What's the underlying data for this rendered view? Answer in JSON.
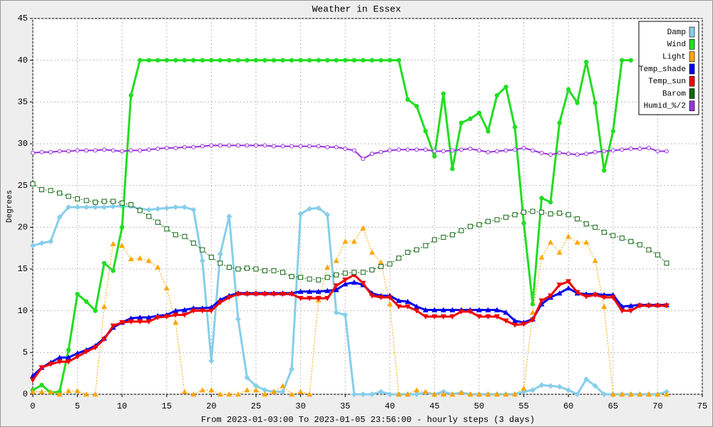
{
  "chart_data": {
    "type": "line",
    "title": "Weather in Essex",
    "y_label": "Degrees",
    "x_label": "From 2023-01-03:00 To 2023-01-05 23:56:00 - hourly steps (3 days)",
    "x": [
      0,
      1,
      2,
      3,
      4,
      5,
      6,
      7,
      8,
      9,
      10,
      11,
      12,
      13,
      14,
      15,
      16,
      17,
      18,
      19,
      20,
      21,
      22,
      23,
      24,
      25,
      26,
      27,
      28,
      29,
      30,
      31,
      32,
      33,
      34,
      35,
      36,
      37,
      38,
      39,
      40,
      41,
      42,
      43,
      44,
      45,
      46,
      47,
      48,
      49,
      50,
      51,
      52,
      53,
      54,
      55,
      56,
      57,
      58,
      59,
      60,
      61,
      62,
      63,
      64,
      65,
      66,
      67,
      68,
      69,
      70,
      71
    ],
    "xlim": [
      0,
      75
    ],
    "xticks": [
      0,
      5,
      10,
      15,
      20,
      25,
      30,
      35,
      40,
      45,
      50,
      55,
      60,
      65,
      70,
      75
    ],
    "ylim": [
      0,
      45
    ],
    "yticks": [
      0,
      5,
      10,
      15,
      20,
      25,
      30,
      35,
      40,
      45
    ],
    "grid": true,
    "legend": "top-right",
    "series": [
      {
        "name": "Damp",
        "color": "#87ceeb",
        "marker": "diamond",
        "width": 3,
        "dash": false,
        "values": [
          17.8,
          18.1,
          18.3,
          21.2,
          22.4,
          22.4,
          22.4,
          22.4,
          22.4,
          22.5,
          22.5,
          22.5,
          22.2,
          22.1,
          22.2,
          22.3,
          22.4,
          22.4,
          22.1,
          16,
          4,
          16.8,
          21.3,
          9,
          2,
          1,
          0.5,
          0.3,
          0.3,
          3,
          21.6,
          22.2,
          22.3,
          21.5,
          9.8,
          9.5,
          0,
          0,
          0,
          0.3,
          0,
          0,
          0,
          0,
          0.2,
          0,
          0.3,
          0,
          0.2,
          0,
          0,
          0,
          0,
          0,
          0,
          0.3,
          0.5,
          1.1,
          1,
          0.9,
          0.5,
          0,
          1.8,
          1,
          0,
          0,
          0,
          0,
          0,
          0,
          0,
          0.3
        ]
      },
      {
        "name": "Wind",
        "color": "#22dd22",
        "marker": "circle",
        "width": 3,
        "dash": false,
        "values": [
          0.5,
          1.1,
          0.2,
          0.3,
          5.3,
          12,
          11.1,
          10,
          15.7,
          14.8,
          20,
          35.8,
          40,
          40,
          40,
          40,
          40,
          40,
          40,
          40,
          40,
          40,
          40,
          40,
          40,
          40,
          40,
          40,
          40,
          40,
          40,
          40,
          40,
          40,
          40,
          40,
          40,
          40,
          40,
          40,
          40,
          40,
          35.3,
          34.5,
          31.5,
          28.5,
          36,
          27,
          32.5,
          33,
          33.7,
          31.5,
          35.8,
          36.8,
          32,
          20.5,
          10.8,
          23.5,
          23,
          32.5,
          36.5,
          34.9,
          39.8,
          34.9,
          26.8,
          31.5,
          40,
          40,
          null,
          null,
          null,
          null
        ]
      },
      {
        "name": "Light",
        "color": "#ffa500",
        "marker": "triangle",
        "width": 1,
        "dash": true,
        "values": [
          0.3,
          0.3,
          0.3,
          0,
          0.4,
          0.4,
          0,
          0,
          10.5,
          18,
          17.8,
          16.2,
          16.3,
          16,
          15.2,
          12.7,
          8.6,
          0.3,
          0,
          0.5,
          0.5,
          0,
          0,
          0,
          0.5,
          0.5,
          0,
          0.3,
          1,
          0,
          0.3,
          0,
          11.3,
          15.2,
          16,
          18.3,
          18.3,
          19.9,
          17,
          15.8,
          10.8,
          0,
          0,
          0.5,
          0.3,
          0,
          0,
          0,
          0.2,
          0,
          0,
          0,
          0,
          0,
          0,
          0.7,
          9.8,
          16.4,
          18.2,
          17,
          18.9,
          18.2,
          18.2,
          16,
          10.5,
          0,
          0,
          0,
          0,
          0,
          0,
          0
        ]
      },
      {
        "name": "Temp_shade",
        "color": "#0000ee",
        "marker": "triangle",
        "width": 3,
        "dash": false,
        "values": [
          2.2,
          3.2,
          3.8,
          4.4,
          4.4,
          4.9,
          5.3,
          5.8,
          6.7,
          8,
          8.6,
          9.1,
          9.2,
          9.2,
          9.4,
          9.5,
          10,
          10.1,
          10.3,
          10.3,
          10.4,
          11.3,
          11.8,
          12.1,
          12.1,
          12.1,
          12.1,
          12.1,
          12.1,
          12.1,
          12.3,
          12.3,
          12.3,
          12.4,
          12.5,
          13.2,
          13.4,
          13.1,
          12.1,
          11.8,
          11.8,
          11.2,
          11.1,
          10.5,
          10.1,
          10.1,
          10.1,
          10.1,
          10.1,
          10.1,
          10.1,
          10.1,
          10.1,
          9.8,
          8.8,
          8.6,
          9,
          10.8,
          11.6,
          12.1,
          12.7,
          12.1,
          12,
          12,
          11.9,
          11.9,
          10.5,
          10.6,
          10.7,
          10.7,
          10.7,
          10.7
        ]
      },
      {
        "name": "Temp_sun",
        "color": "#ee0000",
        "marker": "triangle-down",
        "width": 3,
        "dash": false,
        "values": [
          1.7,
          3.2,
          3.6,
          3.9,
          3.9,
          4.5,
          5.1,
          5.6,
          6.6,
          8.2,
          8.6,
          8.7,
          8.7,
          8.7,
          9.2,
          9.3,
          9.5,
          9.5,
          10,
          10,
          10,
          11,
          11.6,
          12,
          12,
          12,
          12,
          12,
          12,
          12,
          11.5,
          11.5,
          11.5,
          11.5,
          13,
          13.7,
          14.3,
          13.3,
          11.8,
          11.6,
          11.6,
          10.5,
          10.5,
          10,
          9.3,
          9.3,
          9.3,
          9.3,
          9.9,
          9.9,
          9.3,
          9.3,
          9.3,
          8.8,
          8.3,
          8.4,
          8.9,
          11.2,
          11.8,
          13.1,
          13.5,
          12.2,
          11.7,
          11.9,
          11.6,
          11.6,
          10,
          10,
          10.6,
          10.6,
          10.6,
          10.6
        ]
      },
      {
        "name": "Barom",
        "color": "#116611",
        "marker": "square-open",
        "width": 1,
        "dash": true,
        "values": [
          25.2,
          24.5,
          24.4,
          24.1,
          23.7,
          23.4,
          23.2,
          23,
          23.1,
          23.1,
          22.9,
          22.7,
          22,
          21.3,
          20.6,
          19.8,
          19.1,
          18.9,
          18.1,
          17.3,
          16.4,
          15.7,
          15.2,
          15,
          15.1,
          15,
          14.8,
          14.8,
          14.6,
          14.1,
          14,
          13.8,
          13.7,
          14,
          14.3,
          14.5,
          14.6,
          14.6,
          14.9,
          15.3,
          15.6,
          16.3,
          17,
          17.3,
          17.8,
          18.5,
          18.8,
          19.1,
          19.6,
          20.1,
          20.3,
          20.7,
          20.9,
          21.2,
          21.5,
          21.8,
          21.9,
          21.8,
          21.6,
          21.7,
          21.5,
          21,
          20.4,
          20,
          19.4,
          19,
          18.7,
          18.3,
          17.9,
          17.3,
          16.7,
          15.7
        ]
      },
      {
        "name": "Humid_%/2",
        "color": "#9933dd",
        "marker": "circle-small",
        "width": 2,
        "dash": false,
        "values": [
          28.9,
          29,
          29,
          29.1,
          29.1,
          29.2,
          29.2,
          29.2,
          29.3,
          29.2,
          29.1,
          29.2,
          29.2,
          29.3,
          29.4,
          29.5,
          29.5,
          29.6,
          29.6,
          29.7,
          29.8,
          29.8,
          29.8,
          29.8,
          29.8,
          29.8,
          29.8,
          29.7,
          29.7,
          29.7,
          29.7,
          29.7,
          29.7,
          29.6,
          29.6,
          29.4,
          29.2,
          28.2,
          28.8,
          29,
          29.2,
          29.3,
          29.3,
          29.3,
          29.3,
          29.1,
          29.1,
          29.2,
          29.3,
          29.4,
          29.2,
          29,
          29.1,
          29.2,
          29.3,
          29.5,
          29.2,
          28.9,
          28.7,
          28.9,
          28.8,
          28.7,
          28.8,
          29,
          29.1,
          29.2,
          29.3,
          29.4,
          29.4,
          29.5,
          29.1,
          29.1
        ]
      }
    ]
  }
}
